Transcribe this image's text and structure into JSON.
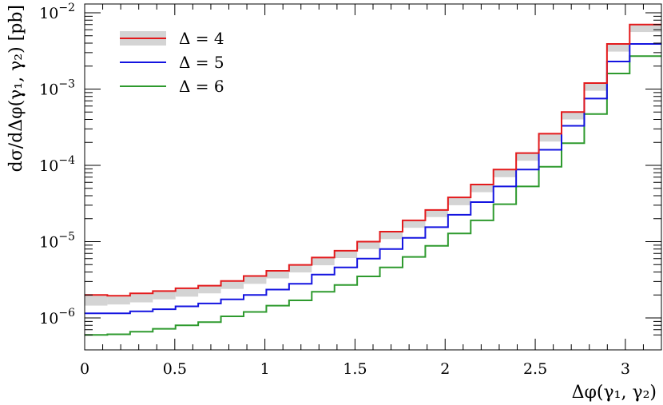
{
  "chart_data": {
    "type": "line",
    "step": true,
    "xlabel": "Δφ(γ₁, γ₂)",
    "ylabel": "dσ/dΔφ(γ₁, γ₂) [pb]",
    "xlim": [
      0,
      3.2
    ],
    "ylim": [
      5.5e-07,
      0.01
    ],
    "ylog": true,
    "grid": false,
    "legend_position": "top-left",
    "x_ticks": [
      "0",
      "0.5",
      "1",
      "1.5",
      "2",
      "2.5",
      "3"
    ],
    "y_ticks": [
      {
        "base": "10",
        "exp": "−6"
      },
      {
        "base": "10",
        "exp": "−5"
      },
      {
        "base": "10",
        "exp": "−4"
      },
      {
        "base": "10",
        "exp": "−3"
      },
      {
        "base": "10",
        "exp": "−2"
      }
    ],
    "bin_edges": [
      0,
      0.126,
      0.252,
      0.378,
      0.504,
      0.63,
      0.756,
      0.882,
      1.008,
      1.134,
      1.26,
      1.386,
      1.512,
      1.638,
      1.764,
      1.89,
      2.016,
      2.142,
      2.268,
      2.394,
      2.52,
      2.646,
      2.772,
      2.898,
      3.024,
      3.2
    ],
    "series": [
      {
        "name": "Δ = 4",
        "color": "#e31a1c",
        "band_color": "#d4d4d4",
        "values": [
          2e-06,
          1.95e-06,
          2.1e-06,
          2.25e-06,
          2.45e-06,
          2.65e-06,
          3.05e-06,
          3.55e-06,
          4.15e-06,
          4.95e-06,
          6.2e-06,
          7.6e-06,
          1e-05,
          1.35e-05,
          1.9e-05,
          2.6e-05,
          3.8e-05,
          5.6e-05,
          8.8e-05,
          0.000145,
          0.00026,
          0.0005,
          0.0012,
          0.0039,
          0.007
        ],
        "band_low": [
          1.45e-06,
          1.5e-06,
          1.6e-06,
          1.75e-06,
          1.9e-06,
          2.1e-06,
          2.4e-06,
          2.8e-06,
          3.3e-06,
          3.95e-06,
          4.9e-06,
          6.1e-06,
          8e-06,
          1.08e-05,
          1.52e-05,
          2.1e-05,
          3e-05,
          4.45e-05,
          7e-05,
          0.000115,
          0.000205,
          0.0004,
          0.00095,
          0.0031,
          0.0056
        ],
        "band_high": [
          1.95e-06,
          1.9e-06,
          2.05e-06,
          2.2e-06,
          2.4e-06,
          2.6e-06,
          3e-06,
          3.5e-06,
          4.1e-06,
          4.9e-06,
          6.15e-06,
          7.55e-06,
          9.9e-06,
          1.34e-05,
          1.88e-05,
          2.58e-05,
          3.75e-05,
          5.5e-05,
          8.7e-05,
          0.000143,
          0.000255,
          0.000495,
          0.00118,
          0.00385,
          0.0069
        ]
      },
      {
        "name": "Δ = 5",
        "color": "#1414e0",
        "values": [
          1.15e-06,
          1.15e-06,
          1.22e-06,
          1.3e-06,
          1.42e-06,
          1.55e-06,
          1.75e-06,
          2e-06,
          2.35e-06,
          2.8e-06,
          3.7e-06,
          4.6e-06,
          6e-06,
          8e-06,
          1.12e-05,
          1.55e-05,
          2.25e-05,
          3.3e-05,
          5.3e-05,
          8.8e-05,
          0.00016,
          0.00033,
          0.00075,
          0.0023,
          0.0039
        ]
      },
      {
        "name": "Δ = 6",
        "color": "#2e9a2e",
        "values": [
          6e-07,
          6.1e-07,
          6.6e-07,
          7.2e-07,
          8e-07,
          8.8e-07,
          1.05e-06,
          1.2e-06,
          1.45e-06,
          1.7e-06,
          2.2e-06,
          2.7e-06,
          3.5e-06,
          4.6e-06,
          6.3e-06,
          8.8e-06,
          1.28e-05,
          1.9e-05,
          3.1e-05,
          5.3e-05,
          9.6e-05,
          0.000195,
          0.00047,
          0.0016,
          0.0027
        ]
      }
    ]
  }
}
